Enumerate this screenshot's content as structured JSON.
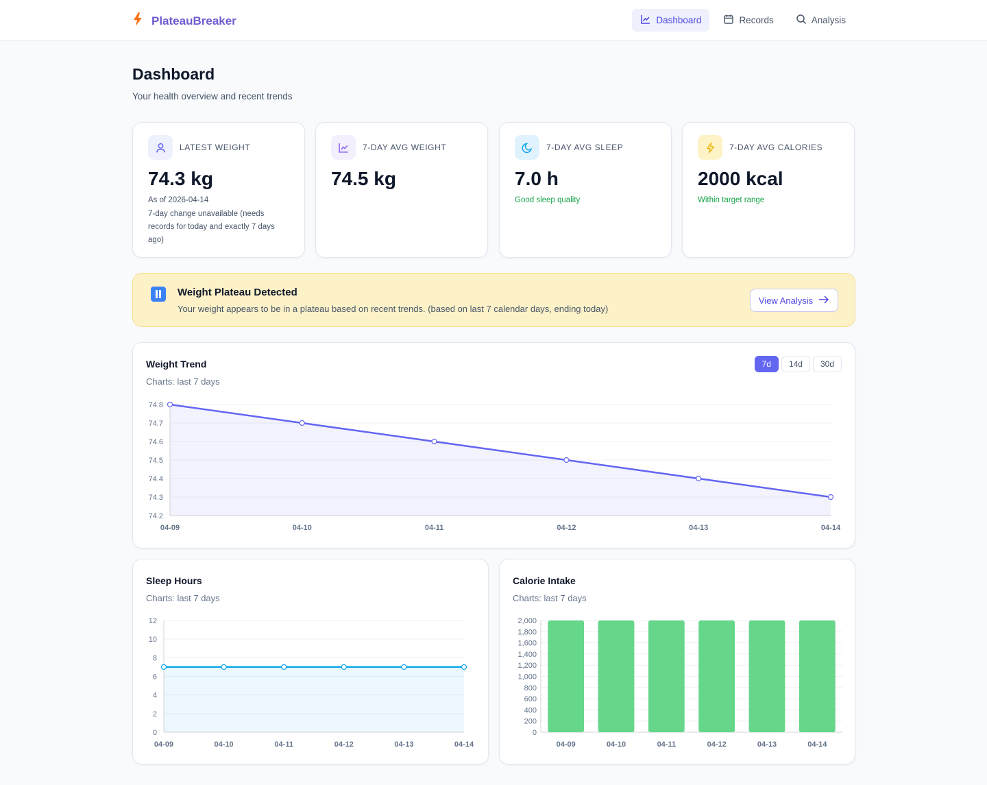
{
  "app": {
    "brand": "PlateauBreaker",
    "nav": [
      {
        "label": "Dashboard",
        "icon": "line-chart-icon",
        "active": true
      },
      {
        "label": "Records",
        "icon": "calendar-icon",
        "active": false
      },
      {
        "label": "Analysis",
        "icon": "search-icon",
        "active": false
      }
    ]
  },
  "page": {
    "title": "Dashboard",
    "subtitle": "Your health overview and recent trends"
  },
  "stats": [
    {
      "label": "LATEST WEIGHT",
      "icon": "user-icon",
      "value": "74.3 kg",
      "note": "As of 2026-04-14",
      "note2": "7-day change unavailable (needs records for today and exactly 7 days ago)",
      "color": "#6366f1"
    },
    {
      "label": "7-DAY AVG WEIGHT",
      "icon": "trend-chart-icon",
      "value": "74.5 kg",
      "note": "",
      "note2": "",
      "color": "#8b5cf6"
    },
    {
      "label": "7-DAY AVG SLEEP",
      "icon": "moon-icon",
      "value": "7.0 h",
      "note": "Good sleep quality",
      "note2": "",
      "color": "#0ea5e9"
    },
    {
      "label": "7-DAY AVG CALORIES",
      "icon": "bolt-icon",
      "value": "2000 kcal",
      "note": "Within target range",
      "note2": "",
      "color": "#eab308"
    }
  ],
  "alert": {
    "title": "Weight Plateau Detected",
    "text": "Your weight appears to be in a plateau based on recent trends. (based on last 7 calendar days, ending today)",
    "button": "View Analysis"
  },
  "weight_chart": {
    "title": "Weight Trend",
    "subtitle": "Charts: last 7 days",
    "ranges": [
      "7d",
      "14d",
      "30d"
    ],
    "active_range": "7d"
  },
  "sleep_chart": {
    "title": "Sleep Hours",
    "subtitle": "Charts: last 7 days"
  },
  "calorie_chart": {
    "title": "Calorie Intake",
    "subtitle": "Charts: last 7 days"
  },
  "chart_data": [
    {
      "type": "area",
      "title": "Weight Trend",
      "x": [
        "04-09",
        "04-10",
        "04-11",
        "04-12",
        "04-13",
        "04-14"
      ],
      "values": [
        74.8,
        74.7,
        74.6,
        74.5,
        74.4,
        74.3
      ],
      "ylim": [
        74.2,
        74.8
      ],
      "yticks": [
        "74.8",
        "74.7",
        "74.6",
        "74.5",
        "74.4",
        "74.3",
        "74.2"
      ],
      "color": "#6366f1",
      "grid": true
    },
    {
      "type": "area",
      "title": "Sleep Hours",
      "x": [
        "04-09",
        "04-10",
        "04-11",
        "04-12",
        "04-13",
        "04-14"
      ],
      "values": [
        7,
        7,
        7,
        7,
        7,
        7
      ],
      "ylim": [
        0,
        12
      ],
      "yticks": [
        "12",
        "10",
        "8",
        "6",
        "4",
        "2",
        "0"
      ],
      "color": "#0ea5e9",
      "grid": true
    },
    {
      "type": "bar",
      "title": "Calorie Intake",
      "categories": [
        "04-09",
        "04-10",
        "04-11",
        "04-12",
        "04-13",
        "04-14"
      ],
      "values": [
        2000,
        2000,
        2000,
        2000,
        2000,
        2000
      ],
      "ylim": [
        0,
        2000
      ],
      "yticks": [
        "2,000",
        "1,800",
        "1,600",
        "1,400",
        "1,200",
        "1,000",
        "800",
        "600",
        "400",
        "200",
        "0"
      ],
      "color": "#66d68a",
      "grid": true
    }
  ]
}
